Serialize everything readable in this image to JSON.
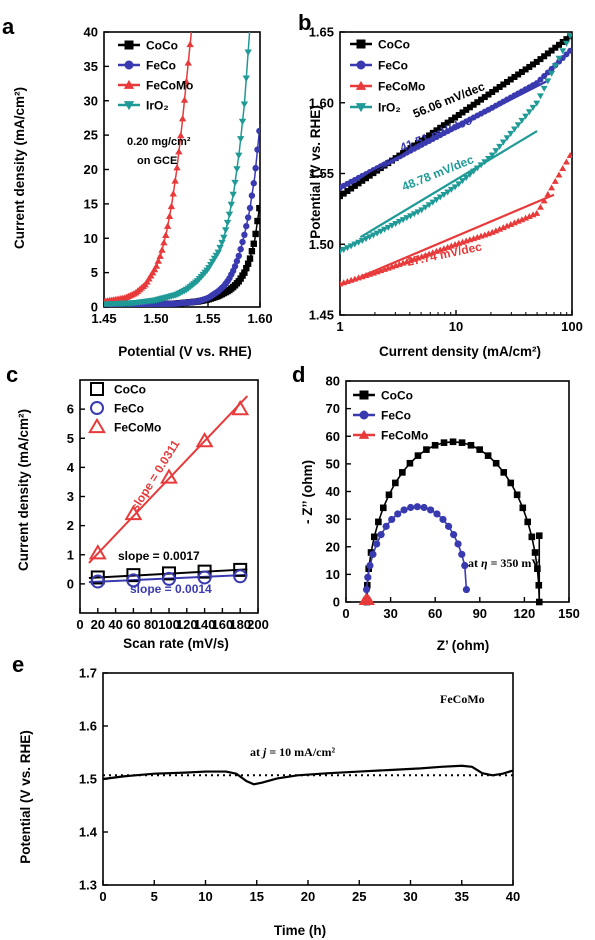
{
  "chart_data": [
    {
      "panel": "a",
      "type": "line",
      "xlabel": "Potential (V vs. RHE)",
      "ylabel": "Current density (mA/cm²)",
      "xlim": [
        1.45,
        1.6
      ],
      "ylim": [
        0,
        40
      ],
      "xticks": [
        1.45,
        1.5,
        1.55,
        1.6
      ],
      "yticks": [
        0,
        5,
        10,
        15,
        20,
        25,
        30,
        35,
        40
      ],
      "xtick_labels": [
        "1.45",
        "1.50",
        "1.55",
        "1.60"
      ],
      "ytick_labels": [
        "0",
        "5",
        "10",
        "15",
        "20",
        "25",
        "30",
        "35",
        "40"
      ],
      "legend_position": "top-left",
      "annotation": [
        "0.20 mg/cm²",
        "on GCE"
      ],
      "series": [
        {
          "name": "CoCo",
          "color": "#000000",
          "marker": "square",
          "x": [
            1.45,
            1.5,
            1.52,
            1.54,
            1.55,
            1.56,
            1.57,
            1.575,
            1.58,
            1.585,
            1.59,
            1.595,
            1.6
          ],
          "y": [
            0.3,
            0.4,
            0.5,
            0.8,
            1.1,
            1.6,
            2.4,
            3.0,
            3.8,
            5.0,
            6.8,
            9.8,
            15.0
          ]
        },
        {
          "name": "FeCo",
          "color": "#3a3ab0",
          "marker": "circle",
          "x": [
            1.45,
            1.5,
            1.52,
            1.54,
            1.55,
            1.56,
            1.565,
            1.57,
            1.575,
            1.58,
            1.585,
            1.59,
            1.595,
            1.6
          ],
          "y": [
            0.3,
            0.4,
            0.5,
            0.8,
            1.3,
            2.3,
            3.0,
            4.0,
            5.5,
            7.6,
            10.5,
            14.0,
            19.0,
            26.5
          ]
        },
        {
          "name": "FeCoMo",
          "color": "#e83a3a",
          "marker": "triangle-up",
          "x": [
            1.45,
            1.47,
            1.48,
            1.49,
            1.5,
            1.505,
            1.51,
            1.515,
            1.52,
            1.525,
            1.53,
            1.534
          ],
          "y": [
            0.8,
            1.3,
            2.0,
            3.3,
            5.8,
            7.8,
            10.8,
            14.8,
            20.0,
            26.5,
            34.0,
            40.0
          ]
        },
        {
          "name": "IrO₂",
          "color": "#1f9a96",
          "marker": "triangle-down",
          "x": [
            1.45,
            1.48,
            1.5,
            1.52,
            1.53,
            1.54,
            1.55,
            1.56,
            1.565,
            1.57,
            1.575,
            1.58,
            1.585,
            1.59
          ],
          "y": [
            0.4,
            0.6,
            1.0,
            1.8,
            2.6,
            3.8,
            5.5,
            8.0,
            10.0,
            13.0,
            17.0,
            22.5,
            29.5,
            40.0
          ]
        }
      ]
    },
    {
      "panel": "b",
      "type": "scatter",
      "xlabel": "Current density (mA/cm²)",
      "ylabel": "Potential (V vs. RHE)",
      "xscale": "log",
      "xlim": [
        1,
        100
      ],
      "ylim": [
        1.45,
        1.65
      ],
      "xticks": [
        1,
        10,
        100
      ],
      "yticks": [
        1.45,
        1.5,
        1.55,
        1.6,
        1.65
      ],
      "xtick_labels": [
        "1",
        "10",
        "100"
      ],
      "ytick_labels": [
        "1.45",
        "1.50",
        "1.55",
        "1.60",
        "1.65"
      ],
      "legend_position": "top-left",
      "series": [
        {
          "name": "CoCo",
          "color": "#000000",
          "marker": "square",
          "x": [
            1,
            2,
            5,
            10,
            20,
            50,
            100
          ],
          "y": [
            1.534,
            1.551,
            1.573,
            1.59,
            1.607,
            1.629,
            1.648
          ]
        },
        {
          "name": "FeCo",
          "color": "#3a3ab0",
          "marker": "circle",
          "x": [
            1,
            2,
            5,
            10,
            20,
            50,
            100
          ],
          "y": [
            1.54,
            1.553,
            1.57,
            1.583,
            1.596,
            1.614,
            1.638
          ]
        },
        {
          "name": "FeCoMo",
          "color": "#e83a3a",
          "marker": "triangle-up",
          "x": [
            1,
            2,
            5,
            10,
            20,
            50,
            100
          ],
          "y": [
            1.472,
            1.48,
            1.491,
            1.5,
            1.508,
            1.522,
            1.565
          ]
        },
        {
          "name": "IrO₂",
          "color": "#1f9a96",
          "marker": "triangle-down",
          "x": [
            1,
            2,
            5,
            10,
            20,
            50,
            100
          ],
          "y": [
            1.495,
            1.507,
            1.524,
            1.541,
            1.562,
            1.6,
            1.65
          ]
        }
      ],
      "fits": [
        {
          "label": "56.06 mV/dec",
          "color": "#000000",
          "x": [
            1.5,
            60
          ],
          "y": [
            1.545,
            1.634
          ]
        },
        {
          "label": "41.51 mV/dec",
          "color": "#3a3ab0",
          "x": [
            1.5,
            60
          ],
          "y": [
            1.548,
            1.615
          ]
        },
        {
          "label": "48.78 mV/dec",
          "color": "#1f9a96",
          "x": [
            1.5,
            50
          ],
          "y": [
            1.505,
            1.58
          ]
        },
        {
          "label": "27.74 mV/dec",
          "color": "#e83a3a",
          "x": [
            1.5,
            70
          ],
          "y": [
            1.477,
            1.535
          ]
        }
      ]
    },
    {
      "panel": "c",
      "type": "scatter",
      "xlabel": "Scan rate (mV/s)",
      "ylabel": "Current density (mA/cm²)",
      "xlim": [
        0,
        200
      ],
      "ylim": [
        -1,
        7
      ],
      "xticks": [
        0,
        20,
        40,
        60,
        80,
        100,
        120,
        140,
        160,
        180,
        200
      ],
      "yticks": [
        0,
        1,
        2,
        3,
        4,
        5,
        6
      ],
      "xtick_labels": [
        "0",
        "20",
        "40",
        "60",
        "80",
        "100",
        "120",
        "140",
        "160",
        "180",
        "200"
      ],
      "ytick_labels": [
        "0",
        "1",
        "2",
        "3",
        "4",
        "5",
        "6"
      ],
      "legend_position": "top-left",
      "series": [
        {
          "name": "CoCo",
          "color": "#000000",
          "marker": "square-open",
          "x": [
            20,
            60,
            100,
            140,
            180
          ],
          "y": [
            0.22,
            0.3,
            0.36,
            0.42,
            0.48
          ]
        },
        {
          "name": "FeCo",
          "color": "#3a3ab0",
          "marker": "circle-open",
          "x": [
            20,
            60,
            100,
            140,
            180
          ],
          "y": [
            0.08,
            0.12,
            0.17,
            0.22,
            0.26
          ]
        },
        {
          "name": "FeCoMo",
          "color": "#e83a3a",
          "marker": "triangle-open",
          "x": [
            20,
            60,
            100,
            140,
            180
          ],
          "y": [
            1.05,
            2.4,
            3.65,
            4.9,
            6.0
          ]
        }
      ],
      "fits": [
        {
          "label": "slope = 0.0311",
          "color": "#e83a3a",
          "x": [
            10,
            188
          ],
          "y": [
            0.72,
            6.45
          ]
        },
        {
          "label": "slope = 0.0017",
          "color": "#000000",
          "x": [
            10,
            188
          ],
          "y": [
            0.2,
            0.5
          ]
        },
        {
          "label": "slope = 0.0014",
          "color": "#3a3ab0",
          "x": [
            10,
            188
          ],
          "y": [
            0.06,
            0.31
          ]
        }
      ]
    },
    {
      "panel": "d",
      "type": "scatter",
      "xlabel": "Z’ (ohm)",
      "ylabel": "- Z’’ (ohm)",
      "xlim": [
        0,
        150
      ],
      "ylim": [
        0,
        80
      ],
      "xticks": [
        0,
        30,
        60,
        90,
        120,
        150
      ],
      "yticks": [
        0,
        10,
        20,
        30,
        40,
        50,
        60,
        70,
        80
      ],
      "xtick_labels": [
        "0",
        "30",
        "60",
        "90",
        "120",
        "150"
      ],
      "ytick_labels": [
        "0",
        "10",
        "20",
        "30",
        "40",
        "50",
        "60",
        "70",
        "80"
      ],
      "legend_position": "top-left",
      "annotation": [
        "at ",
        "η",
        " = 350 mV"
      ],
      "series": [
        {
          "name": "CoCo",
          "color": "#000000",
          "marker": "square",
          "center": 72,
          "radius": 58,
          "x_end": 130,
          "y_end": 24
        },
        {
          "name": "FeCo",
          "color": "#3a3ab0",
          "marker": "circle",
          "center": 48,
          "radius": 34.5,
          "x_end": 81,
          "y_end": 4.5
        },
        {
          "name": "FeCoMo",
          "color": "#e83a3a",
          "marker": "triangle-up",
          "x": [
            12,
            13,
            14,
            15,
            16
          ],
          "y": [
            0.3,
            1.0,
            1.4,
            1.0,
            0.3
          ]
        }
      ]
    },
    {
      "panel": "e",
      "type": "line",
      "xlabel": "Time (h)",
      "ylabel": "Potential (V vs. RHE)",
      "xlim": [
        0,
        40
      ],
      "ylim": [
        1.3,
        1.7
      ],
      "xticks": [
        0,
        5,
        10,
        15,
        20,
        25,
        30,
        35,
        40
      ],
      "yticks": [
        1.3,
        1.4,
        1.5,
        1.6,
        1.7
      ],
      "xtick_labels": [
        "0",
        "5",
        "10",
        "15",
        "20",
        "25",
        "30",
        "35",
        "40"
      ],
      "ytick_labels": [
        "1.3",
        "1.4",
        "1.5",
        "1.6",
        "1.7"
      ],
      "label": "FeCoMo",
      "annotation": [
        "at ",
        "j",
        " = 10 mA/cm²"
      ],
      "reference_y": 1.507,
      "series": [
        {
          "name": "FeCoMo",
          "color": "#000000",
          "x": [
            0,
            2,
            5,
            8,
            10,
            12,
            13,
            14,
            14.7,
            15.5,
            17,
            19,
            22,
            25,
            28,
            31,
            33,
            35,
            36,
            37,
            38,
            39,
            40
          ],
          "y": [
            1.5,
            1.505,
            1.51,
            1.512,
            1.514,
            1.514,
            1.51,
            1.496,
            1.49,
            1.493,
            1.501,
            1.507,
            1.511,
            1.514,
            1.517,
            1.52,
            1.523,
            1.525,
            1.523,
            1.511,
            1.507,
            1.51,
            1.516
          ]
        }
      ]
    }
  ]
}
